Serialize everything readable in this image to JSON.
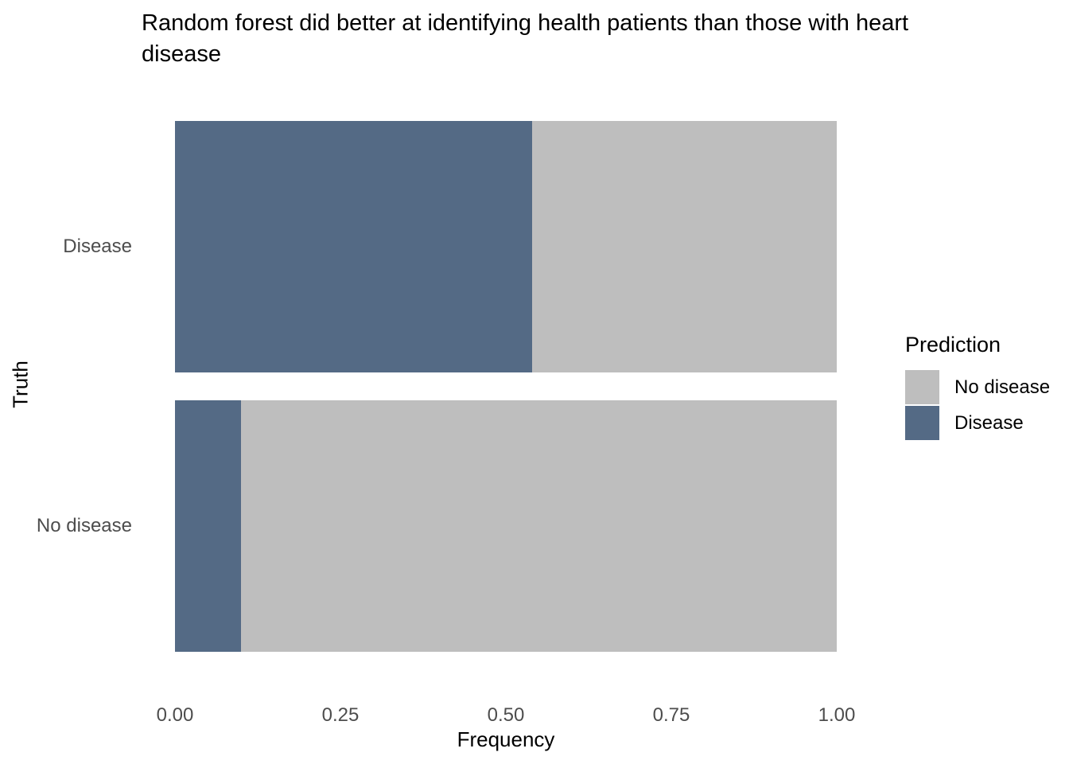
{
  "chart_data": {
    "type": "bar",
    "orientation": "horizontal",
    "stacked": true,
    "title": "Random forest did better at identifying health patients than those with heart disease",
    "xlabel": "Frequency",
    "ylabel": "Truth",
    "categories": [
      "Disease",
      "No disease"
    ],
    "series": [
      {
        "name": "Disease",
        "color": "#546a85",
        "values": [
          0.54,
          0.1
        ]
      },
      {
        "name": "No disease",
        "color": "#bebebe",
        "values": [
          0.46,
          0.9
        ]
      }
    ],
    "x_ticks": [
      {
        "label": "0.00",
        "value": 0.0
      },
      {
        "label": "0.25",
        "value": 0.25
      },
      {
        "label": "0.50",
        "value": 0.5
      },
      {
        "label": "0.75",
        "value": 0.75
      },
      {
        "label": "1.00",
        "value": 1.0
      }
    ],
    "xlim": [
      0,
      1
    ],
    "grid": false,
    "legend": {
      "title": "Prediction",
      "position": "right",
      "items": [
        {
          "label": "No disease",
          "color": "#bebebe"
        },
        {
          "label": "Disease",
          "color": "#546a85"
        }
      ]
    }
  },
  "colors": {
    "bar_blue": "#546a85",
    "bar_gray": "#bebebe",
    "tick_text": "#4d4d4d",
    "title_text": "#000000",
    "background": "#ffffff"
  }
}
